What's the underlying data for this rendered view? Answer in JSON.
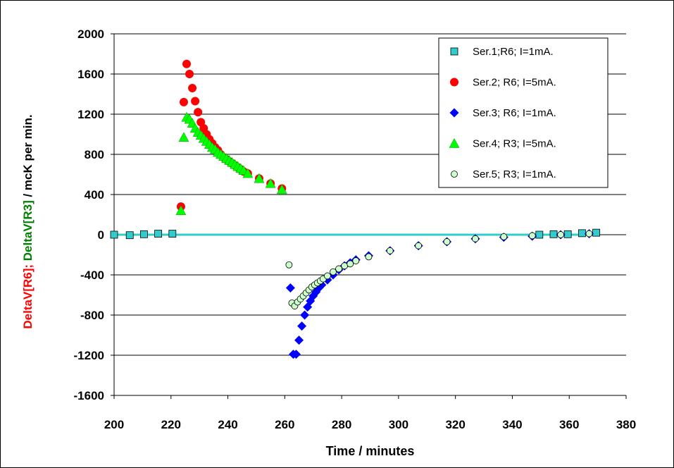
{
  "chart_data": {
    "type": "scatter",
    "xlabel": "Time / minutes",
    "ylabel_parts": [
      {
        "text": "DeltaV[R6]; ",
        "color": "#ff0000"
      },
      {
        "text": "DeltaV[R3]",
        "color": "#008000"
      },
      {
        "text": " / mcK per min.",
        "color": "#000000"
      }
    ],
    "xlim": [
      200,
      380
    ],
    "ylim": [
      -1600,
      2000
    ],
    "xticks": [
      200,
      220,
      240,
      260,
      280,
      300,
      320,
      340,
      360,
      380
    ],
    "yticks": [
      -1600,
      -1200,
      -800,
      -400,
      0,
      400,
      800,
      1200,
      1600,
      2000
    ],
    "grid": "horizontal",
    "legend_position": "top-right",
    "reference_line": {
      "y": 0,
      "x": [
        200,
        369
      ],
      "color": "#33cccc"
    },
    "series": [
      {
        "name": "Ser.1;R6;  I=1mA.",
        "marker": "square",
        "color": "#33cccc",
        "points": [
          [
            200,
            0
          ],
          [
            205.5,
            -5
          ],
          [
            210.5,
            5
          ],
          [
            215.5,
            10
          ],
          [
            220.5,
            10
          ],
          [
            349.5,
            0
          ],
          [
            354.5,
            5
          ],
          [
            359.5,
            5
          ],
          [
            364.5,
            15
          ],
          [
            369.5,
            20
          ]
        ]
      },
      {
        "name": "Ser.2; R6; I=5mA.",
        "marker": "circle",
        "color": "#ff0000",
        "points": [
          [
            223.5,
            280
          ],
          [
            224.5,
            1320
          ],
          [
            225.5,
            1700
          ],
          [
            226.5,
            1600
          ],
          [
            227.5,
            1460
          ],
          [
            228.5,
            1330
          ],
          [
            229.5,
            1220
          ],
          [
            230.5,
            1120
          ],
          [
            231.5,
            1060
          ],
          [
            232.5,
            1000
          ],
          [
            233.5,
            950
          ],
          [
            234.5,
            910
          ],
          [
            235.5,
            870
          ],
          [
            236.5,
            840
          ],
          [
            237.5,
            800
          ],
          [
            238.5,
            770
          ],
          [
            239.5,
            750
          ],
          [
            240.5,
            730
          ],
          [
            241.5,
            710
          ],
          [
            242.5,
            690
          ],
          [
            243.5,
            670
          ],
          [
            244.5,
            650
          ],
          [
            245.5,
            630
          ],
          [
            247,
            610
          ],
          [
            251,
            560
          ],
          [
            255,
            510
          ],
          [
            259,
            460
          ]
        ]
      },
      {
        "name": "Ser.3; R6; I=1mA.",
        "marker": "diamond",
        "color": "#0000ff",
        "points": [
          [
            262,
            -530
          ],
          [
            263,
            -1190
          ],
          [
            264,
            -1190
          ],
          [
            265,
            -1050
          ],
          [
            266,
            -910
          ],
          [
            267,
            -800
          ],
          [
            268,
            -720
          ],
          [
            269,
            -660
          ],
          [
            270,
            -610
          ],
          [
            271,
            -570
          ],
          [
            272,
            -530
          ],
          [
            273,
            -500
          ],
          [
            275,
            -450
          ],
          [
            277,
            -400
          ],
          [
            279,
            -350
          ],
          [
            281,
            -310
          ],
          [
            283,
            -280
          ],
          [
            285,
            -250
          ],
          [
            289.5,
            -210
          ],
          [
            297,
            -160
          ],
          [
            307,
            -110
          ],
          [
            317,
            -70
          ],
          [
            327,
            -40
          ],
          [
            337,
            -25
          ],
          [
            347,
            -15
          ],
          [
            357,
            0
          ],
          [
            367,
            10
          ]
        ]
      },
      {
        "name": "Ser.4; R3; I=5mA.",
        "marker": "triangle",
        "color": "#00ff00",
        "points": [
          [
            223.5,
            240
          ],
          [
            224.5,
            970
          ],
          [
            225.5,
            1170
          ],
          [
            226.5,
            1150
          ],
          [
            227.5,
            1110
          ],
          [
            228.5,
            1060
          ],
          [
            229.5,
            1020
          ],
          [
            230.5,
            990
          ],
          [
            231.5,
            960
          ],
          [
            232.5,
            930
          ],
          [
            233.5,
            900
          ],
          [
            234.5,
            870
          ],
          [
            235.5,
            850
          ],
          [
            236.5,
            820
          ],
          [
            237.5,
            800
          ],
          [
            238.5,
            780
          ],
          [
            239.5,
            760
          ],
          [
            240.5,
            740
          ],
          [
            241.5,
            720
          ],
          [
            242.5,
            700
          ],
          [
            243.5,
            680
          ],
          [
            244.5,
            660
          ],
          [
            245.5,
            640
          ],
          [
            247,
            610
          ],
          [
            251,
            560
          ],
          [
            255,
            510
          ],
          [
            259,
            450
          ]
        ]
      },
      {
        "name": "Ser.5; R3; I=1mA.",
        "marker": "circle-open",
        "color": "#ccffcc",
        "points": [
          [
            261.5,
            -300
          ],
          [
            262.5,
            -680
          ],
          [
            263.5,
            -710
          ],
          [
            264.5,
            -670
          ],
          [
            265.5,
            -640
          ],
          [
            266.5,
            -610
          ],
          [
            267.5,
            -580
          ],
          [
            268.5,
            -550
          ],
          [
            269.5,
            -520
          ],
          [
            270.5,
            -500
          ],
          [
            271.5,
            -480
          ],
          [
            272.5,
            -460
          ],
          [
            273.5,
            -440
          ],
          [
            275,
            -410
          ],
          [
            277,
            -370
          ],
          [
            279,
            -340
          ],
          [
            281,
            -310
          ],
          [
            283,
            -290
          ],
          [
            285,
            -260
          ],
          [
            289.5,
            -220
          ],
          [
            297,
            -160
          ],
          [
            307,
            -110
          ],
          [
            317,
            -70
          ],
          [
            327,
            -40
          ],
          [
            337,
            -20
          ],
          [
            347,
            -10
          ],
          [
            357,
            0
          ],
          [
            367,
            10
          ]
        ]
      }
    ]
  }
}
